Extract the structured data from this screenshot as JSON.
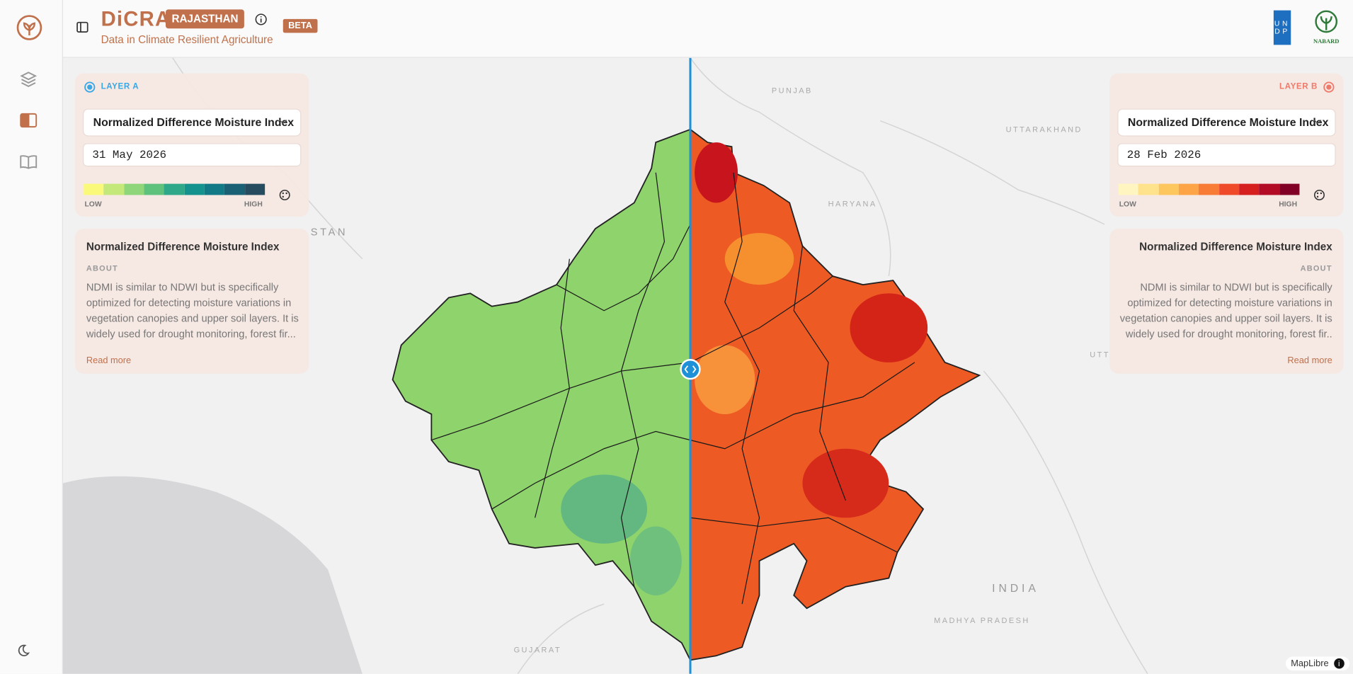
{
  "header": {
    "brand": "DiCRA",
    "state": "RAJASTHAN",
    "tagline": "Data in Climate Resilient Agriculture",
    "beta": "BETA",
    "logos": {
      "undp_top": "UN",
      "undp_bottom": "DP",
      "nabard": "NABARD"
    }
  },
  "layer_a": {
    "label": "LAYER A",
    "indicator": "Normalized Difference Moisture Index",
    "date": "31 May 2026",
    "legend": {
      "low": "LOW",
      "high": "HIGH",
      "colors": [
        "#fbf97a",
        "#c4e87a",
        "#8fd67a",
        "#5ec27c",
        "#2fa88a",
        "#14928e",
        "#127a86",
        "#1a6176",
        "#264c60"
      ]
    },
    "info": {
      "title": "Normalized Difference Moisture Index",
      "section": "ABOUT",
      "text": "NDMI is similar to NDWI but is specifically optimized for detecting moisture variations in vegetation canopies and upper soil layers. It is widely used for drought monitoring, forest fir...",
      "link": "Read more"
    }
  },
  "layer_b": {
    "label": "LAYER B",
    "indicator": "Normalized Difference Moisture Index",
    "date": "28 Feb 2026",
    "legend": {
      "low": "LOW",
      "high": "HIGH",
      "colors": [
        "#fff5c0",
        "#fee28c",
        "#fec75e",
        "#fca446",
        "#f87b36",
        "#ef4a2a",
        "#d6201f",
        "#b20c26",
        "#800026"
      ]
    },
    "info": {
      "title": "Normalized Difference Moisture Index",
      "section": "ABOUT",
      "text": "NDMI is similar to NDWI but is specifically optimized for detecting moisture variations in vegetation canopies and upper soil layers. It is widely used for drought monitoring, forest fir..",
      "link": "Read more"
    }
  },
  "map": {
    "labels": [
      "PUNJAB",
      "UTTARAKHAND",
      "HARYANA",
      "STAN",
      "INDIA",
      "MADHYA PRADESH",
      "GUJARAT",
      "UTT"
    ],
    "attribution": "MapLibre"
  }
}
